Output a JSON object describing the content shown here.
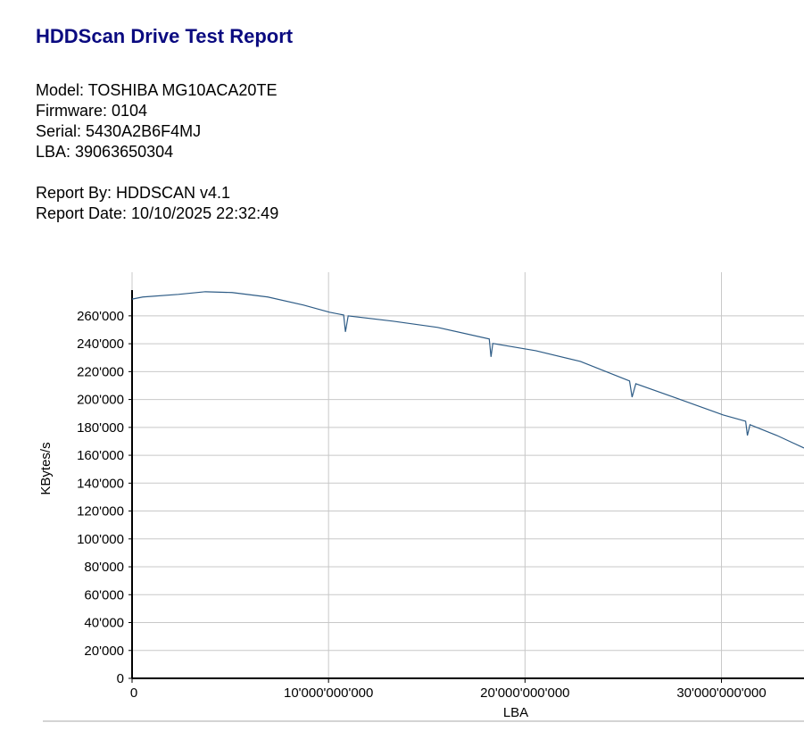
{
  "header": {
    "title": "HDDScan Drive Test Report"
  },
  "info": [
    "Model: TOSHIBA MG10ACA20TE",
    "Firmware: 0104",
    "Serial: 5430A2B6F4MJ",
    "LBA: 39063650304"
  ],
  "report": [
    "Report By: HDDSCAN v4.1",
    "Report Date: 10/10/2025 22:32:49"
  ],
  "chart_data": {
    "type": "line",
    "x_label": "LBA",
    "y_label": "KBytes/s",
    "x": [
      0,
      545000000,
      2360000000,
      3730000000,
      5090000000,
      6910000000,
      8730000000,
      10050000000,
      10770000000,
      10860000000,
      11000000000,
      13270000000,
      15550000000,
      18180000000,
      18270000000,
      18360000000,
      20550000000,
      22820000000,
      25320000000,
      25450000000,
      25640000000,
      27820000000,
      30090000000,
      31230000000,
      31320000000,
      31450000000,
      32820000000,
      34200000000
    ],
    "series": [
      {
        "name": "KBytes/s",
        "color": "#2e5c86",
        "values": [
          272000,
          273500,
          275400,
          277300,
          276700,
          273500,
          267700,
          262600,
          260600,
          248500,
          260000,
          256200,
          251700,
          243400,
          230600,
          240200,
          235000,
          227300,
          213300,
          201700,
          211300,
          200400,
          188900,
          184400,
          174200,
          181900,
          174200,
          165200
        ]
      }
    ],
    "xlim": [
      0,
      34200000000
    ],
    "xticks": [
      {
        "value": 0,
        "label": "0"
      },
      {
        "value": 10000000000,
        "label": "10'000'000'000"
      },
      {
        "value": 20000000000,
        "label": "20'000'000'000"
      },
      {
        "value": 30000000000,
        "label": "30'000'000'000"
      }
    ],
    "ylim": [
      0,
      290000
    ],
    "yticks": [
      0,
      {
        "value": 20000,
        "label": "20'000"
      },
      {
        "value": 40000,
        "label": "40'000"
      },
      {
        "value": 60000,
        "label": "60'000"
      },
      {
        "value": 80000,
        "label": "80'000"
      },
      {
        "value": 100000,
        "label": "100'000"
      },
      {
        "value": 120000,
        "label": "120'000"
      },
      {
        "value": 140000,
        "label": "140'000"
      },
      {
        "value": 160000,
        "label": "160'000"
      },
      {
        "value": 180000,
        "label": "180'000"
      },
      {
        "value": 200000,
        "label": "200'000"
      },
      {
        "value": 220000,
        "label": "220'000"
      },
      {
        "value": 240000,
        "label": "240'000"
      },
      {
        "value": 260000,
        "label": "260'000"
      }
    ],
    "grid": true
  }
}
